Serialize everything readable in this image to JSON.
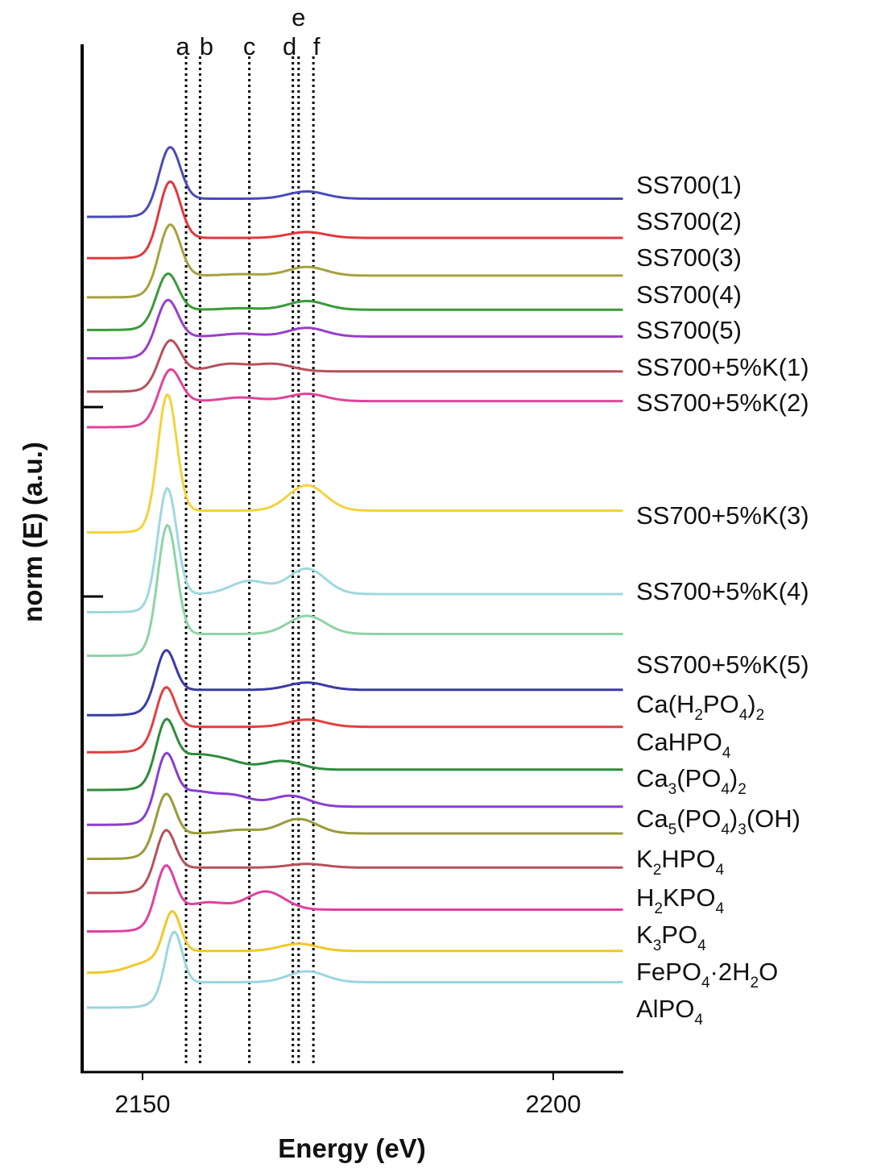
{
  "chart_data": {
    "type": "line",
    "title": "",
    "xlabel": "Energy (eV)",
    "ylabel": "norm (E) (a.u.)",
    "xlim": [
      2145,
      2209
    ],
    "x_ticks": [
      {
        "value": 2150,
        "label": "2150"
      },
      {
        "value": 2200,
        "label": "2200"
      }
    ],
    "grid": false,
    "y_ticks_shown": false,
    "reference_lines": [
      {
        "label": "a",
        "x": 2155.3
      },
      {
        "label": "b",
        "x": 2157.0
      },
      {
        "label": "c",
        "x": 2163.0
      },
      {
        "label": "d",
        "x": 2168.3
      },
      {
        "label": "e",
        "x": 2169.0
      },
      {
        "label": "f",
        "x": 2170.8
      }
    ],
    "series": [
      {
        "name": "SS700(1)",
        "color": "#4a4ab8",
        "baseline": 0.0,
        "peak_x": 2153.3,
        "peak_height": 1.0,
        "edge_width": 1.8,
        "post_level": 0.25,
        "features": [
          [
            2162,
            0.0
          ],
          [
            2170,
            0.1
          ]
        ]
      },
      {
        "name": "SS700(2)",
        "color": "#e0393e",
        "baseline": -0.57,
        "peak_x": 2153.3,
        "peak_height": 1.1,
        "edge_width": 1.8,
        "post_level": 0.28,
        "features": [
          [
            2162,
            0.0
          ],
          [
            2170,
            0.08
          ]
        ]
      },
      {
        "name": "SS700(3)",
        "color": "#a6a23e",
        "baseline": -1.11,
        "peak_x": 2153.3,
        "peak_height": 1.05,
        "edge_width": 1.8,
        "post_level": 0.3,
        "features": [
          [
            2162,
            0.02
          ],
          [
            2170,
            0.12
          ]
        ]
      },
      {
        "name": "SS700(4)",
        "color": "#3a9a3a",
        "baseline": -1.56,
        "peak_x": 2153.0,
        "peak_height": 0.82,
        "edge_width": 1.8,
        "post_level": 0.28,
        "features": [
          [
            2162,
            0.02
          ],
          [
            2170,
            0.12
          ]
        ]
      },
      {
        "name": "SS700(5)",
        "color": "#9a3ec8",
        "baseline": -1.95,
        "peak_x": 2153.0,
        "peak_height": 0.85,
        "edge_width": 1.8,
        "post_level": 0.3,
        "features": [
          [
            2162,
            0.04
          ],
          [
            2170,
            0.12
          ]
        ]
      },
      {
        "name": "SS700+5%K(1)",
        "color": "#b8505a",
        "baseline": -2.41,
        "peak_x": 2153.3,
        "peak_height": 0.75,
        "edge_width": 1.8,
        "post_level": 0.28,
        "features": [
          [
            2160.5,
            0.1
          ],
          [
            2166,
            0.1
          ]
        ]
      },
      {
        "name": "SS700+5%K(2)",
        "color": "#e0449a",
        "baseline": -2.9,
        "peak_x": 2153.3,
        "peak_height": 0.85,
        "edge_width": 1.8,
        "post_level": 0.36,
        "features": [
          [
            2162,
            0.05
          ],
          [
            2170,
            0.1
          ]
        ]
      },
      {
        "name": "SS700+5%K(3)",
        "color": "#f4d23c",
        "baseline": -4.35,
        "peak_x": 2153.0,
        "peak_height": 1.95,
        "edge_width": 1.6,
        "post_level": 0.3,
        "features": [
          [
            2162,
            0.0
          ],
          [
            2170,
            0.35
          ]
        ]
      },
      {
        "name": "SS700+5%K(4)",
        "color": "#9fd8e0",
        "baseline": -5.45,
        "peak_x": 2153.0,
        "peak_height": 1.75,
        "edge_width": 1.6,
        "post_level": 0.25,
        "features": [
          [
            2163,
            0.18
          ],
          [
            2170,
            0.35
          ]
        ]
      },
      {
        "name": "SS700+5%K(5)",
        "color": "#8ed3a6",
        "baseline": -6.05,
        "peak_x": 2153.0,
        "peak_height": 1.85,
        "edge_width": 1.6,
        "post_level": 0.3,
        "features": [
          [
            2162,
            0.0
          ],
          [
            2170,
            0.25
          ]
        ]
      },
      {
        "name": "Ca(H2PO4)2",
        "color": "#3a3aa8",
        "baseline": -6.87,
        "peak_x": 2152.8,
        "peak_height": 0.95,
        "edge_width": 1.6,
        "post_level": 0.35,
        "features": [
          [
            2162,
            0.0
          ],
          [
            2170,
            0.1
          ]
        ]
      },
      {
        "name": "CaHPO4",
        "color": "#e04040",
        "baseline": -7.38,
        "peak_x": 2152.8,
        "peak_height": 0.95,
        "edge_width": 1.6,
        "post_level": 0.35,
        "features": [
          [
            2162,
            0.0
          ],
          [
            2170,
            0.1
          ]
        ]
      },
      {
        "name": "Ca3(PO4)2",
        "color": "#2e8b3a",
        "baseline": -7.9,
        "peak_x": 2152.8,
        "peak_height": 0.95,
        "edge_width": 1.6,
        "post_level": 0.28,
        "features": [
          [
            2156,
            0.18
          ],
          [
            2160,
            0.12
          ],
          [
            2167,
            0.12
          ]
        ]
      },
      {
        "name": "Ca5(PO4)3(OH)",
        "color": "#8a3ed0",
        "baseline": -8.38,
        "peak_x": 2152.8,
        "peak_height": 0.95,
        "edge_width": 1.6,
        "post_level": 0.25,
        "features": [
          [
            2156,
            0.2
          ],
          [
            2161,
            0.15
          ],
          [
            2168,
            0.15
          ]
        ]
      },
      {
        "name": "K2HPO4",
        "color": "#9a9a3a",
        "baseline": -8.85,
        "peak_x": 2152.8,
        "peak_height": 0.95,
        "edge_width": 1.6,
        "post_level": 0.35,
        "features": [
          [
            2162,
            0.05
          ],
          [
            2169,
            0.2
          ]
        ]
      },
      {
        "name": "H2KPO4",
        "color": "#b8505a",
        "baseline": -9.32,
        "peak_x": 2152.8,
        "peak_height": 0.92,
        "edge_width": 1.6,
        "post_level": 0.35,
        "features": [
          [
            2162,
            0.0
          ],
          [
            2170,
            0.05
          ]
        ]
      },
      {
        "name": "K3PO4",
        "color": "#e040a0",
        "baseline": -9.85,
        "peak_x": 2152.8,
        "peak_height": 0.95,
        "edge_width": 1.6,
        "post_level": 0.3,
        "features": [
          [
            2158,
            0.1
          ],
          [
            2165,
            0.25
          ]
        ]
      },
      {
        "name": "FePO4·2H2O",
        "color": "#f0c828",
        "baseline": -10.42,
        "peak_x": 2153.6,
        "peak_height": 0.85,
        "edge_width": 1.4,
        "post_level": 0.3,
        "features": [
          [
            2150.5,
            0.12
          ],
          [
            2169,
            0.1
          ]
        ]
      },
      {
        "name": "AlPO4",
        "color": "#9ad6e0",
        "baseline": -10.9,
        "peak_x": 2153.8,
        "peak_height": 1.1,
        "edge_width": 1.4,
        "post_level": 0.35,
        "features": [
          [
            2162,
            0.0
          ],
          [
            2170,
            0.15
          ]
        ]
      }
    ]
  },
  "labels": [
    [
      {
        "t": "SS700(1)"
      }
    ],
    [
      {
        "t": "SS700(2)"
      }
    ],
    [
      {
        "t": "SS700(3)"
      }
    ],
    [
      {
        "t": "SS700(4)"
      }
    ],
    [
      {
        "t": "SS700(5)"
      }
    ],
    [
      {
        "t": "SS700+5%K(1)"
      }
    ],
    [
      {
        "t": "SS700+5%K(2)"
      }
    ],
    [
      {
        "t": "SS700+5%K(3)"
      }
    ],
    [
      {
        "t": "SS700+5%K(4)"
      }
    ],
    [
      {
        "t": "SS700+5%K(5)"
      }
    ],
    [
      {
        "t": "Ca(H"
      },
      {
        "t": "2",
        "sub": true
      },
      {
        "t": "PO"
      },
      {
        "t": "4",
        "sub": true
      },
      {
        "t": ")"
      },
      {
        "t": "2",
        "sub": true
      }
    ],
    [
      {
        "t": "CaHPO"
      },
      {
        "t": "4",
        "sub": true
      }
    ],
    [
      {
        "t": "Ca"
      },
      {
        "t": "3",
        "sub": true
      },
      {
        "t": "(PO"
      },
      {
        "t": "4",
        "sub": true
      },
      {
        "t": ")"
      },
      {
        "t": "2",
        "sub": true
      }
    ],
    [
      {
        "t": "Ca"
      },
      {
        "t": "5",
        "sub": true
      },
      {
        "t": "(PO"
      },
      {
        "t": "4",
        "sub": true
      },
      {
        "t": ")"
      },
      {
        "t": "3",
        "sub": true
      },
      {
        "t": "(OH)"
      }
    ],
    [
      {
        "t": "K"
      },
      {
        "t": "2",
        "sub": true
      },
      {
        "t": "HPO"
      },
      {
        "t": "4",
        "sub": true
      }
    ],
    [
      {
        "t": "H"
      },
      {
        "t": "2",
        "sub": true
      },
      {
        "t": "KPO"
      },
      {
        "t": "4",
        "sub": true
      }
    ],
    [
      {
        "t": "K"
      },
      {
        "t": "3",
        "sub": true
      },
      {
        "t": "PO"
      },
      {
        "t": "4",
        "sub": true
      }
    ],
    [
      {
        "t": "FePO"
      },
      {
        "t": "4",
        "sub": true
      },
      {
        "t": "·2H"
      },
      {
        "t": "2",
        "sub": true
      },
      {
        "t": "O"
      }
    ],
    [
      {
        "t": "AlPO"
      },
      {
        "t": "4",
        "sub": true
      }
    ]
  ]
}
